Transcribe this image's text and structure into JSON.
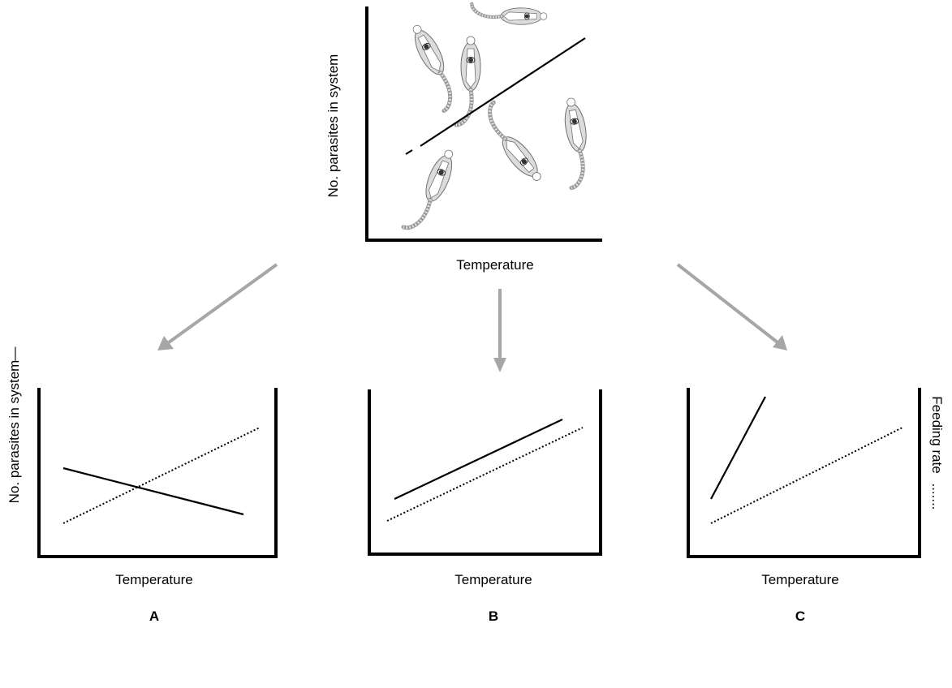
{
  "top_panel": {
    "ylabel": "No. parasites in system",
    "xlabel": "Temperature"
  },
  "panels": [
    {
      "id": "A",
      "label": "A",
      "xlabel": "Temperature",
      "ylabel_left": "No. parasites in system",
      "legend_solid_glyph": "—"
    },
    {
      "id": "B",
      "label": "B",
      "xlabel": "Temperature"
    },
    {
      "id": "C",
      "label": "C",
      "xlabel": "Temperature",
      "ylabel_right": "Feeding rate",
      "legend_dotted_glyph": "......."
    }
  ],
  "colors": {
    "axis": "#000000",
    "arrow": "#a6a6a6",
    "organism_body": "#dcdcdc"
  },
  "icons": [
    "copepod-icon",
    "arrow-icon"
  ]
}
